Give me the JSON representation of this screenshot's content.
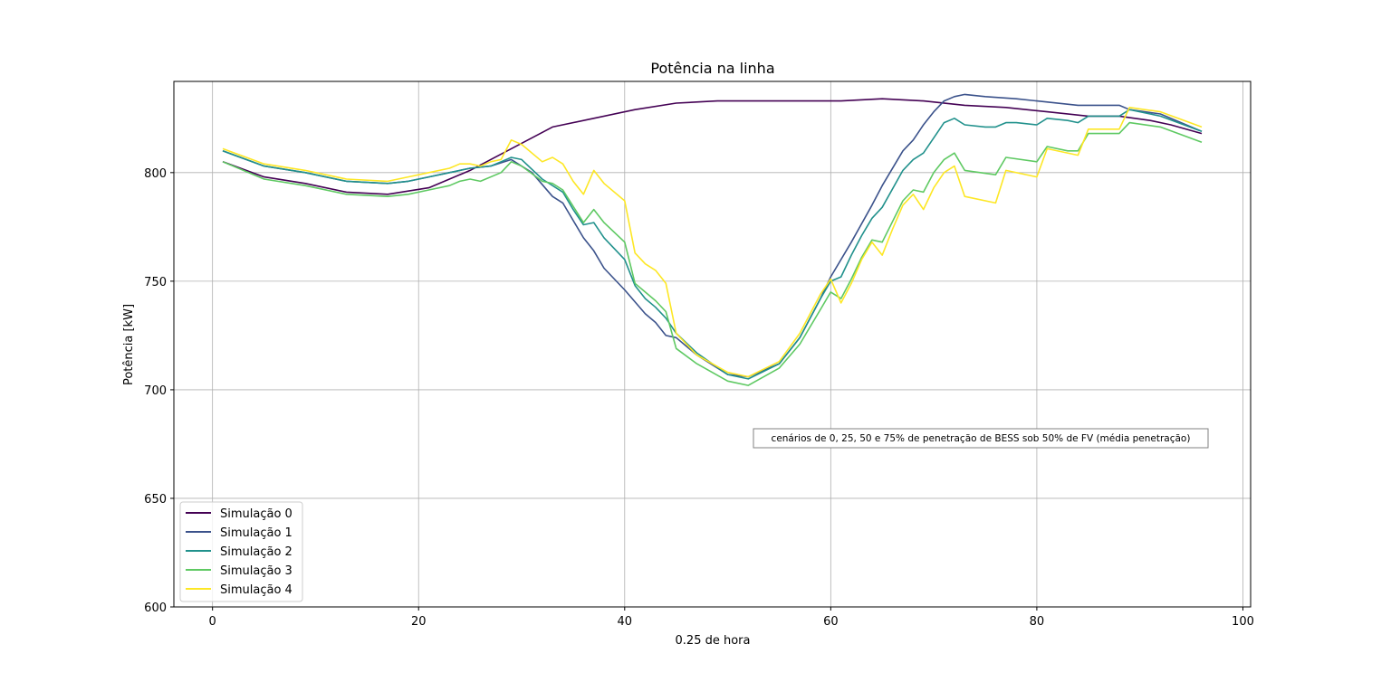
{
  "chart_data": {
    "type": "line",
    "title": "Potência na linha",
    "xlabel": "0.25 de hora",
    "ylabel": "Potência [kW]",
    "xlim": [
      -3.75,
      100.75
    ],
    "ylim": [
      600,
      842
    ],
    "xticks": [
      0,
      20,
      40,
      60,
      80,
      100
    ],
    "yticks": [
      600,
      650,
      700,
      750,
      800
    ],
    "grid": true,
    "legend_position": "lower left",
    "annotation": "cenários de 0, 25, 50 e 75% de penetração de BESS sob 50% de FV (média penetração)",
    "series": [
      {
        "name": "Simulação 0",
        "color": "#440154",
        "x": [
          1,
          5,
          9,
          13,
          17,
          21,
          25,
          29,
          33,
          37,
          41,
          45,
          49,
          53,
          57,
          61,
          65,
          69,
          73,
          77,
          81,
          85,
          88,
          91,
          93,
          96
        ],
        "y": [
          805,
          798,
          795,
          791,
          790,
          793,
          801,
          811,
          821,
          825,
          829,
          832,
          833,
          833,
          833,
          833,
          834,
          833,
          831,
          830,
          828,
          826,
          826,
          824,
          822,
          818
        ]
      },
      {
        "name": "Simulação 1",
        "color": "#3b528b",
        "x": [
          1,
          5,
          9,
          13,
          17,
          19,
          21,
          23,
          25,
          27,
          29,
          31,
          33,
          34,
          36,
          37,
          38,
          40,
          42,
          43,
          44,
          45,
          47,
          50,
          52,
          55,
          57,
          59,
          60,
          62,
          64,
          65,
          67,
          68,
          69,
          70,
          71,
          72,
          73,
          75,
          78,
          80,
          84,
          88,
          89,
          92,
          96
        ],
        "y": [
          810,
          803,
          800,
          796,
          795,
          796,
          798,
          800,
          802,
          803,
          806,
          800,
          789,
          786,
          770,
          764,
          756,
          746,
          735,
          731,
          725,
          724,
          716,
          707,
          706,
          712,
          724,
          742,
          752,
          768,
          785,
          794,
          810,
          815,
          822,
          828,
          833,
          835,
          836,
          835,
          834,
          833,
          831,
          831,
          829,
          827,
          819
        ]
      },
      {
        "name": "Simulação 2",
        "color": "#21918c",
        "x": [
          1,
          5,
          9,
          13,
          17,
          19,
          21,
          23,
          25,
          27,
          28,
          29,
          30,
          32,
          34,
          35,
          36,
          37,
          38,
          40,
          41,
          42,
          43,
          44,
          45,
          47,
          50,
          52,
          55,
          57,
          59,
          60,
          61,
          62,
          63,
          64,
          65,
          67,
          68,
          69,
          70,
          71,
          72,
          73,
          75,
          76,
          77,
          78,
          80,
          81,
          83,
          84,
          85,
          88,
          89,
          92,
          96
        ],
        "y": [
          810,
          803,
          800,
          796,
          795,
          796,
          798,
          800,
          802,
          803,
          805,
          807,
          806,
          797,
          791,
          783,
          776,
          777,
          770,
          760,
          748,
          742,
          738,
          733,
          726,
          717,
          707,
          705,
          712,
          724,
          742,
          750,
          752,
          762,
          771,
          779,
          784,
          801,
          806,
          809,
          816,
          823,
          825,
          822,
          821,
          821,
          823,
          823,
          822,
          825,
          824,
          823,
          826,
          826,
          829,
          826,
          819
        ]
      },
      {
        "name": "Simulação 3",
        "color": "#5ec962",
        "x": [
          1,
          5,
          9,
          13,
          17,
          19,
          21,
          23,
          24,
          25,
          26,
          28,
          29,
          30,
          32,
          33,
          34,
          36,
          37,
          38,
          40,
          41,
          42,
          43,
          44,
          45,
          47,
          50,
          52,
          55,
          57,
          59,
          60,
          61,
          62,
          63,
          64,
          65,
          67,
          68,
          69,
          70,
          71,
          72,
          73,
          76,
          77,
          80,
          81,
          83,
          84,
          85,
          88,
          89,
          92,
          96
        ],
        "y": [
          805,
          797,
          794,
          790,
          789,
          790,
          792,
          794,
          796,
          797,
          796,
          800,
          805,
          803,
          796,
          795,
          792,
          777,
          783,
          777,
          768,
          749,
          745,
          741,
          736,
          719,
          712,
          704,
          702,
          710,
          721,
          737,
          745,
          742,
          751,
          761,
          769,
          768,
          787,
          792,
          791,
          800,
          806,
          809,
          801,
          799,
          807,
          805,
          812,
          810,
          810,
          818,
          818,
          823,
          821,
          814
        ]
      },
      {
        "name": "Simulação 4",
        "color": "#fde725",
        "x": [
          1,
          5,
          9,
          13,
          17,
          19,
          21,
          23,
          24,
          25,
          26,
          27,
          28,
          29,
          30,
          32,
          33,
          34,
          35,
          36,
          37,
          38,
          40,
          41,
          42,
          43,
          44,
          45,
          47,
          50,
          52,
          55,
          57,
          59,
          60,
          61,
          62,
          63,
          64,
          65,
          66,
          67,
          68,
          69,
          70,
          71,
          72,
          73,
          76,
          77,
          80,
          81,
          84,
          85,
          88,
          89,
          92,
          96
        ],
        "y": [
          811,
          804,
          801,
          797,
          796,
          798,
          800,
          802,
          804,
          804,
          803,
          805,
          806,
          815,
          813,
          805,
          807,
          804,
          796,
          790,
          801,
          795,
          787,
          763,
          758,
          755,
          749,
          726,
          716,
          708,
          706,
          713,
          726,
          744,
          751,
          740,
          749,
          760,
          768,
          762,
          774,
          785,
          790,
          783,
          793,
          800,
          803,
          789,
          786,
          801,
          798,
          811,
          808,
          820,
          820,
          830,
          828,
          821
        ]
      }
    ]
  }
}
